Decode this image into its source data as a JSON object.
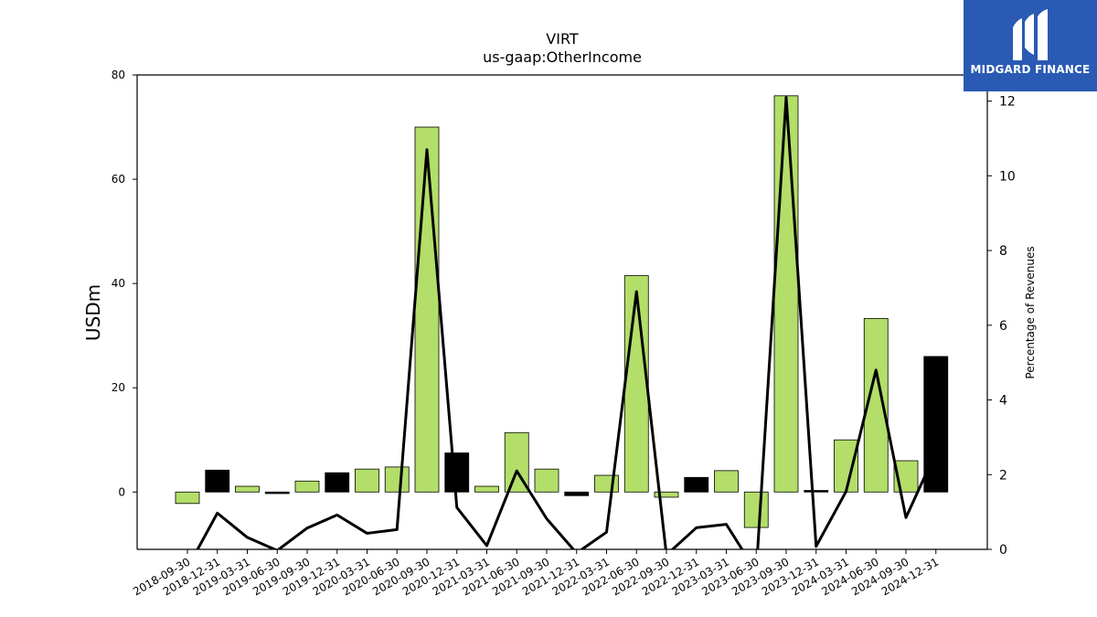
{
  "chart_data": {
    "type": "bar",
    "title": "VIRT",
    "subtitle": "us-gaap:OtherIncome",
    "ylabel": "USDm",
    "y2label": "Percentage of Revenues",
    "ylim": [
      -11,
      80
    ],
    "y2lim": [
      0,
      12.7
    ],
    "yticks": [
      0,
      20,
      40,
      60,
      80
    ],
    "y2ticks": [
      0,
      2,
      4,
      6,
      8,
      10,
      12
    ],
    "categories": [
      "2018-09-30",
      "2018-12-31",
      "2019-03-31",
      "2019-06-30",
      "2019-09-30",
      "2019-12-31",
      "2020-03-31",
      "2020-06-30",
      "2020-09-30",
      "2020-12-31",
      "2021-03-31",
      "2021-06-30",
      "2021-09-30",
      "2021-12-31",
      "2022-03-31",
      "2022-06-30",
      "2022-09-30",
      "2022-12-31",
      "2023-03-31",
      "2023-06-30",
      "2023-09-30",
      "2023-12-31",
      "2024-03-31",
      "2024-06-30",
      "2024-09-30",
      "2024-12-31"
    ],
    "values": [
      -2.2,
      4.2,
      1.1,
      -0.3,
      2.1,
      3.7,
      4.4,
      4.8,
      70.0,
      7.5,
      1.1,
      11.4,
      4.4,
      -0.7,
      3.2,
      41.5,
      -1.0,
      2.8,
      4.1,
      -6.8,
      76.0,
      0.3,
      10.0,
      33.3,
      6.0,
      26.0
    ],
    "bar_colors": [
      "#b3de69",
      "#000000",
      "#b3de69",
      "#000000",
      "#b3de69",
      "#000000",
      "#b3de69",
      "#b3de69",
      "#b3de69",
      "#000000",
      "#b3de69",
      "#b3de69",
      "#b3de69",
      "#000000",
      "#b3de69",
      "#b3de69",
      "#b3de69",
      "#000000",
      "#b3de69",
      "#b3de69",
      "#b3de69",
      "#000000",
      "#b3de69",
      "#b3de69",
      "#b3de69",
      "#000000"
    ],
    "line_series": {
      "values": [
        -0.5,
        0.97,
        0.32,
        -0.03,
        0.57,
        0.92,
        0.43,
        0.53,
        10.7,
        1.12,
        0.1,
        2.1,
        0.82,
        -0.1,
        0.46,
        6.9,
        -0.15,
        0.58,
        0.67,
        -0.6,
        12.1,
        0.08,
        1.55,
        4.8,
        0.85,
        2.6
      ]
    },
    "colors": {
      "bar_positive": "#b3de69",
      "bar_q4": "#000000",
      "line": "#000000"
    }
  },
  "logo": {
    "text": "MIDGARD FINANCE",
    "background": "#2a5ab3"
  }
}
